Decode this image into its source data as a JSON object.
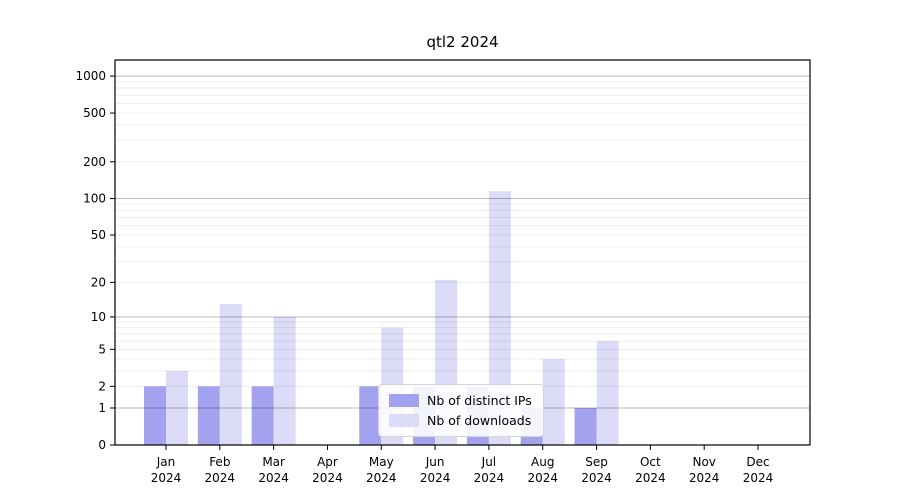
{
  "title": "qtl2 2024",
  "legend": {
    "items": [
      {
        "label": "Nb of distinct IPs",
        "color": "#a2a2ee"
      },
      {
        "label": "Nb of downloads",
        "color": "#dcdcf8"
      }
    ]
  },
  "chart_data": {
    "type": "bar",
    "title": "qtl2 2024",
    "categories": [
      "Jan",
      "Feb",
      "Mar",
      "Apr",
      "May",
      "Jun",
      "Jul",
      "Aug",
      "Sep",
      "Oct",
      "Nov",
      "Dec"
    ],
    "category_year": "2024",
    "series": [
      {
        "name": "Nb of distinct IPs",
        "color": "#a2a2ee",
        "values": [
          2,
          2,
          2,
          0,
          2,
          2,
          2,
          1,
          1,
          0,
          0,
          0
        ]
      },
      {
        "name": "Nb of downloads",
        "color": "#dcdcf8",
        "values": [
          3,
          13,
          10,
          0,
          8,
          21,
          115,
          4,
          6,
          0,
          0,
          0
        ]
      }
    ],
    "y_scale": "log1p",
    "y_ticks": [
      0,
      1,
      2,
      5,
      10,
      20,
      50,
      100,
      200,
      500,
      1000
    ],
    "y_gridlines_major": [
      1,
      10,
      100,
      1000
    ],
    "y_gridlines_minor": [
      2,
      3,
      4,
      5,
      6,
      7,
      8,
      9,
      20,
      30,
      40,
      50,
      60,
      70,
      80,
      90,
      200,
      300,
      400,
      500,
      600,
      700,
      800,
      900
    ],
    "ylim": [
      0,
      1350
    ],
    "grid": true,
    "grid_above_bars": true,
    "legend_position": "inside-bottom-center",
    "xlabel": "",
    "ylabel": ""
  }
}
